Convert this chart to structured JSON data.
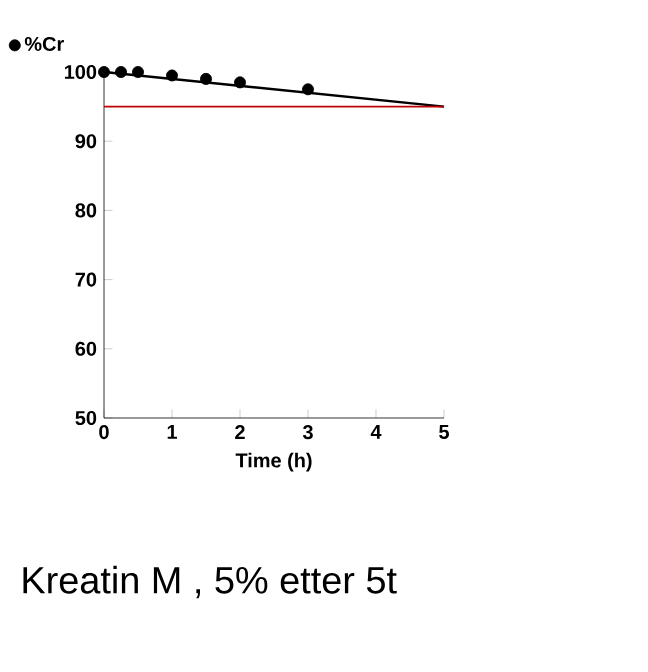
{
  "chart_data": {
    "type": "scatter",
    "xlabel": "Time (h)",
    "xlim": [
      0,
      5
    ],
    "xticks": [
      0,
      1,
      2,
      3,
      4,
      5
    ],
    "ylim": [
      50,
      100
    ],
    "yticks": [
      50,
      60,
      70,
      80,
      90,
      100
    ],
    "series": [
      {
        "name": "%Cr",
        "color": "#000000",
        "marker": "circle",
        "x": [
          0,
          0.25,
          0.5,
          1,
          1.5,
          2,
          3
        ],
        "values": [
          100,
          100,
          100,
          99.5,
          99,
          98.5,
          97.5
        ]
      },
      {
        "type": "line",
        "color": "#000000",
        "marker": "none",
        "line_style": "solid",
        "x": [
          0,
          5
        ],
        "values": [
          100,
          95
        ]
      }
    ],
    "ref_lines": [
      {
        "axis": "y",
        "value": 95,
        "color": "#c00000"
      }
    ],
    "legend": "top left",
    "grid": false,
    "annotations": [
      "Kreatin M , 5% etter 5t"
    ]
  }
}
